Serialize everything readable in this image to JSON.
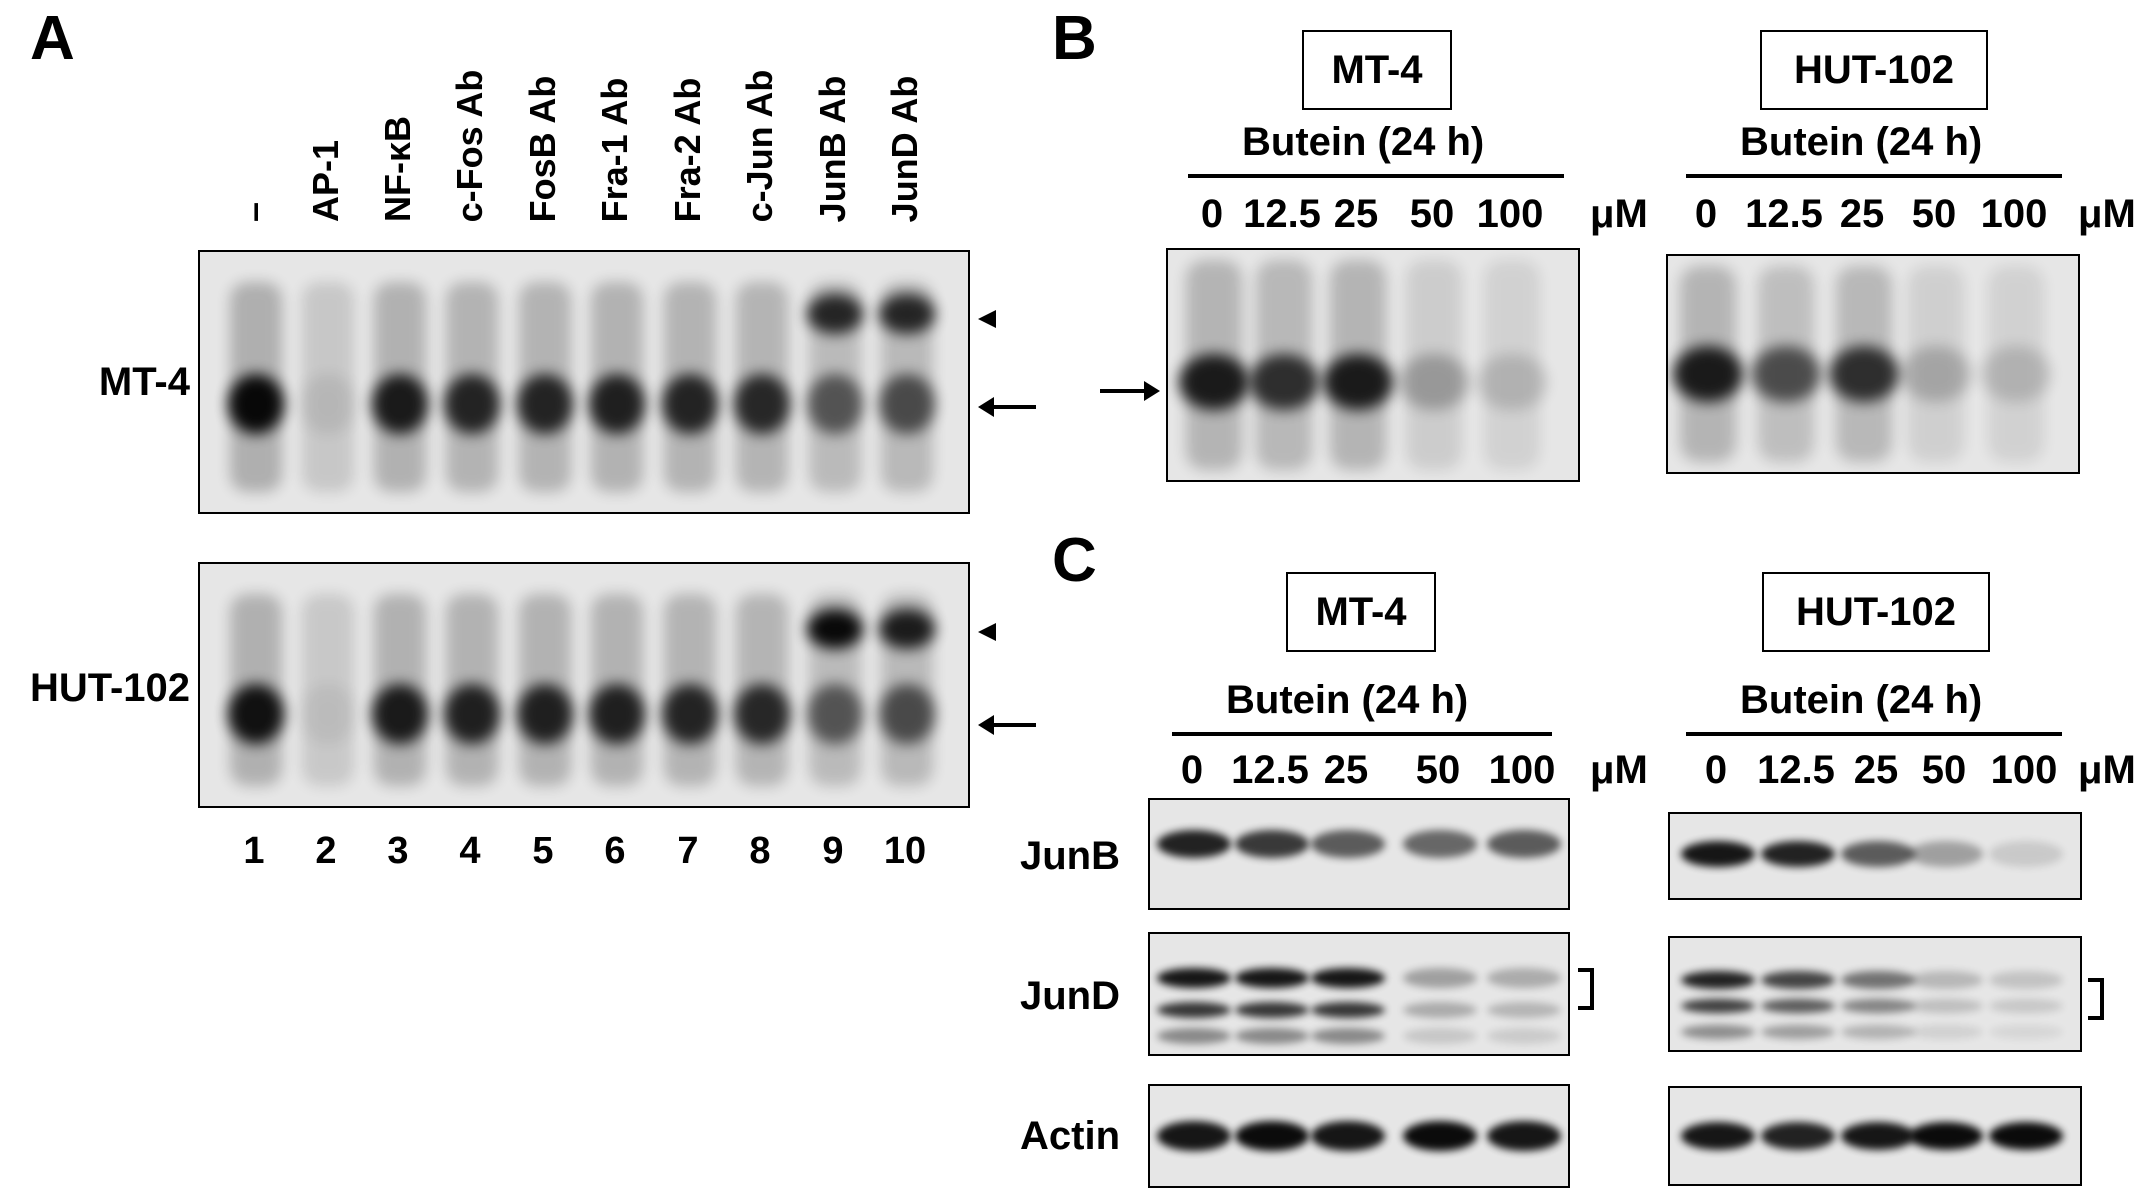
{
  "panel_a": {
    "letter": "A",
    "lane_headers": [
      "–",
      "AP-1",
      "NF-κB",
      "c-Fos Ab",
      "FosB Ab",
      "Fra-1 Ab",
      "Fra-2 Ab",
      "c-Jun Ab",
      "JunB Ab",
      "JunD Ab"
    ],
    "lane_numbers": [
      "1",
      "2",
      "3",
      "4",
      "5",
      "6",
      "7",
      "8",
      "9",
      "10"
    ],
    "row_labels": [
      "MT-4",
      "HUT-102"
    ],
    "band_intensity_mt4": [
      0.95,
      0.08,
      0.85,
      0.8,
      0.8,
      0.82,
      0.8,
      0.78,
      0.55,
      0.6
    ],
    "band_intensity_hut102": [
      0.9,
      0.06,
      0.85,
      0.82,
      0.82,
      0.82,
      0.8,
      0.78,
      0.55,
      0.6
    ],
    "supershift_mt4": [
      0,
      0,
      0,
      0,
      0,
      0,
      0,
      0,
      0.8,
      0.8
    ],
    "supershift_hut102": [
      0,
      0,
      0,
      0,
      0,
      0,
      0,
      0,
      0.95,
      0.85
    ]
  },
  "panel_b": {
    "letter": "B",
    "cell_lines": [
      "MT-4",
      "HUT-102"
    ],
    "treatment": "Butein (24 h)",
    "concentrations": [
      "0",
      "12.5",
      "25",
      "50",
      "100"
    ],
    "unit": "μM",
    "band_intensity": [
      [
        0.85,
        0.75,
        0.85,
        0.25,
        0.15
      ],
      [
        0.85,
        0.6,
        0.75,
        0.2,
        0.15
      ]
    ]
  },
  "panel_c": {
    "letter": "C",
    "cell_lines": [
      "MT-4",
      "HUT-102"
    ],
    "treatment": "Butein (24 h)",
    "concentrations": [
      "0",
      "12.5",
      "25",
      "50",
      "100"
    ],
    "unit": "μM",
    "blot_labels": [
      "JunB",
      "JunD",
      "Actin"
    ],
    "junb_intensity": [
      [
        0.85,
        0.75,
        0.6,
        0.55,
        0.6
      ],
      [
        0.9,
        0.85,
        0.6,
        0.3,
        0.12
      ]
    ],
    "jund_intensity": [
      [
        0.9,
        0.9,
        0.9,
        0.3,
        0.25
      ],
      [
        0.85,
        0.7,
        0.5,
        0.2,
        0.15
      ]
    ],
    "actin_intensity": [
      [
        0.9,
        0.95,
        0.9,
        0.95,
        0.9
      ],
      [
        0.9,
        0.85,
        0.9,
        0.95,
        0.95
      ]
    ]
  }
}
